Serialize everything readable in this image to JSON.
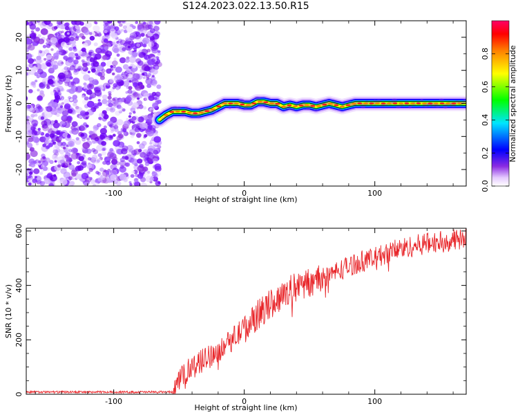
{
  "title": "S124.2023.022.13.50.R15",
  "chart_data": [
    {
      "type": "heatmap",
      "xlabel": "Height of straight line (km)",
      "ylabel": "Frequency (Hz)",
      "xlim": [
        -167,
        170
      ],
      "ylim": [
        -25,
        25
      ],
      "xticks": [
        -100,
        0,
        100
      ],
      "yticks": [
        -20,
        -10,
        0,
        10,
        20
      ],
      "noise_region_x": [
        -167,
        -65
      ],
      "ridge": {
        "x": [
          -65,
          -60,
          -55,
          -50,
          -45,
          -40,
          -35,
          -30,
          -25,
          -20,
          -15,
          -10,
          -5,
          0,
          5,
          10,
          15,
          20,
          25,
          30,
          35,
          40,
          45,
          50,
          55,
          60,
          65,
          70,
          75,
          80,
          85,
          90,
          100,
          110,
          120,
          130,
          140,
          150,
          160,
          170
        ],
        "freq": [
          -5,
          -3.5,
          -2.5,
          -2.5,
          -2.5,
          -3,
          -3,
          -2.5,
          -2,
          -1,
          0,
          0,
          0,
          -0.5,
          -0.5,
          0.5,
          0.5,
          0,
          0,
          -1,
          -0.5,
          -1,
          -0.5,
          -0.5,
          -1,
          -0.5,
          0,
          -0.5,
          -1,
          -0.5,
          0,
          0,
          0,
          0,
          0,
          0,
          0,
          0,
          0,
          0
        ]
      },
      "colorbar": {
        "label": "Normalized spectral amplitude",
        "range": [
          0,
          1
        ],
        "ticks": [
          "0.0",
          "0.2",
          "0.4",
          "0.6",
          "0.8"
        ]
      }
    },
    {
      "type": "line",
      "xlabel": "Height of straight line (km)",
      "ylabel": "SNR (10 * v/v)",
      "xlim": [
        -167,
        170
      ],
      "ylim": [
        0,
        610
      ],
      "xticks": [
        -100,
        0,
        100
      ],
      "yticks": [
        0,
        200,
        400,
        600
      ],
      "color": "#e8262a",
      "trend": {
        "x": [
          -167,
          -110,
          -55,
          -50,
          -45,
          -40,
          -30,
          -20,
          -10,
          0,
          10,
          20,
          30,
          40,
          50,
          60,
          70,
          80,
          90,
          100,
          110,
          120,
          130,
          140,
          150,
          160,
          170
        ],
        "snr": [
          8,
          8,
          8,
          40,
          80,
          100,
          130,
          160,
          200,
          240,
          290,
          330,
          370,
          395,
          410,
          430,
          450,
          470,
          490,
          500,
          520,
          535,
          545,
          555,
          560,
          565,
          570
        ]
      }
    }
  ]
}
